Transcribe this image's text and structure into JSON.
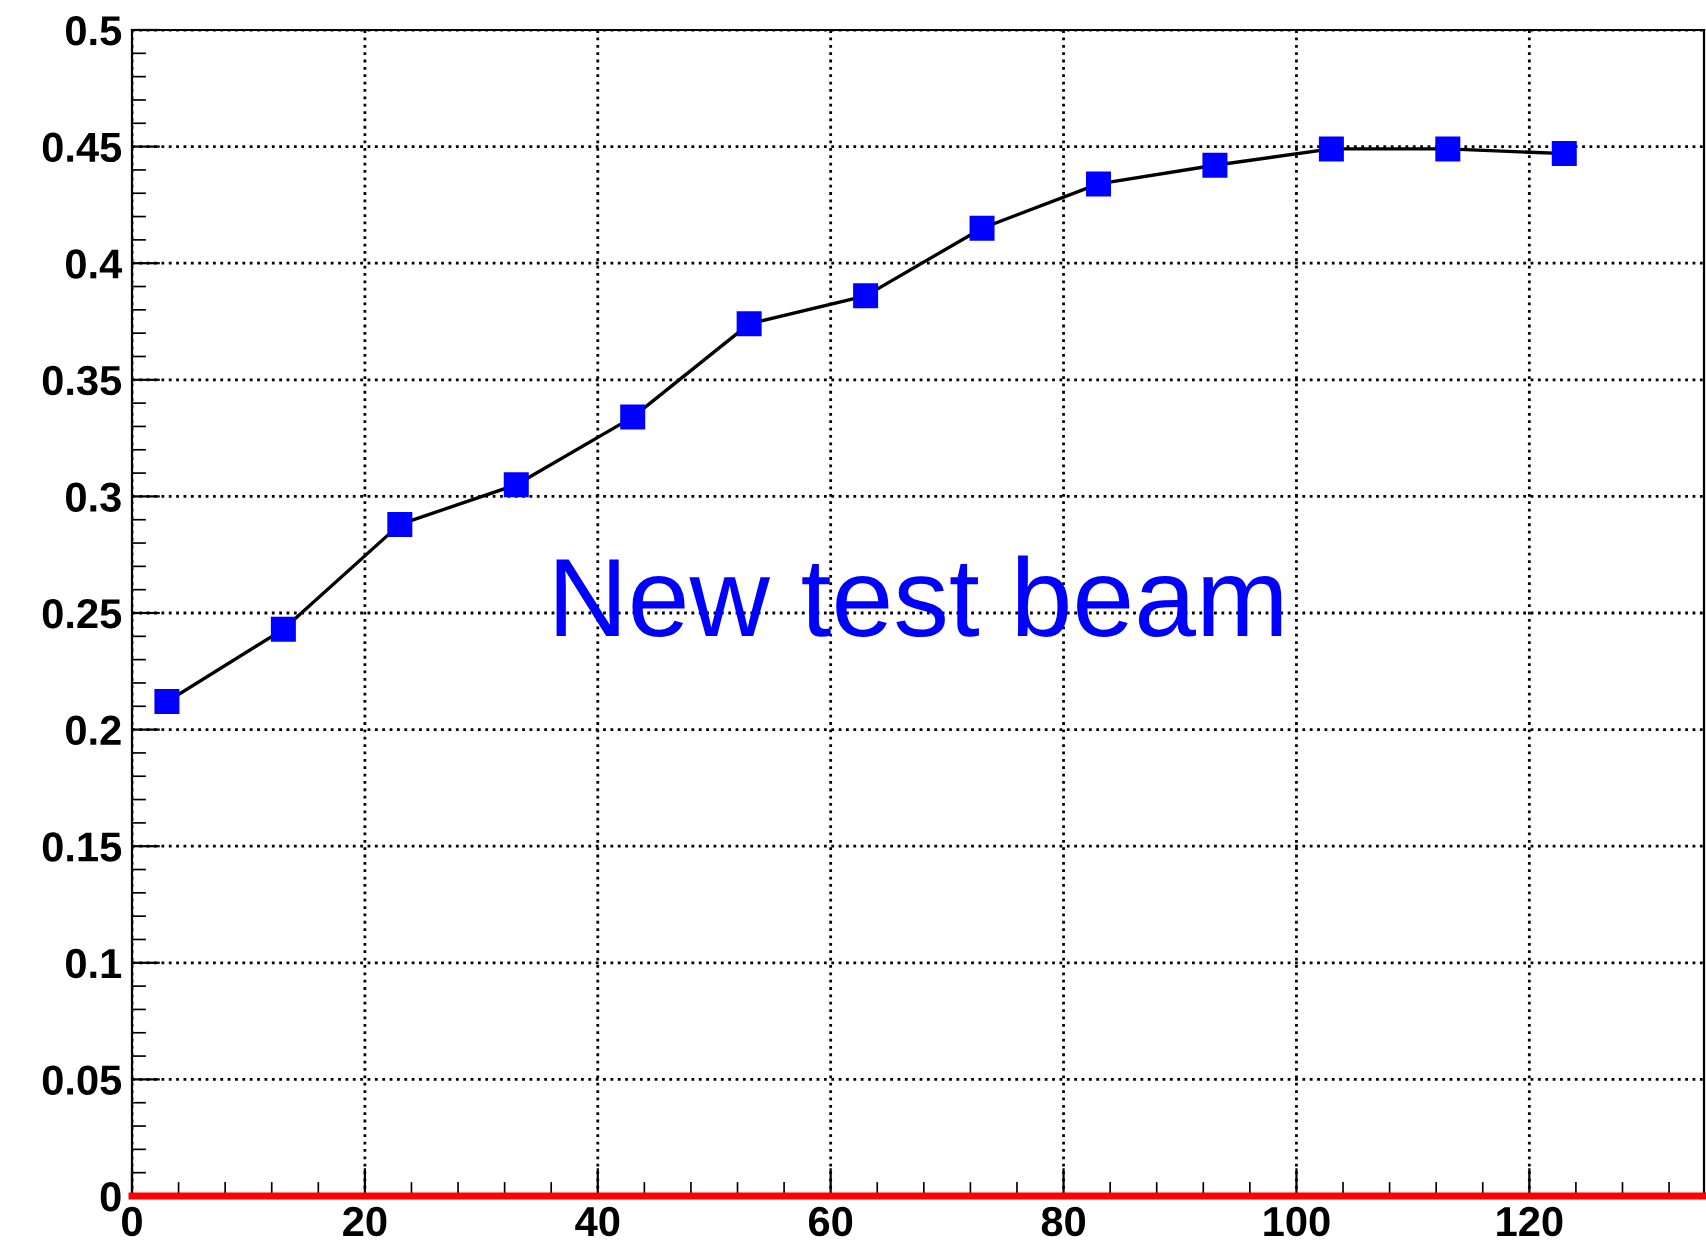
{
  "chart_data": {
    "type": "line",
    "x": [
      3,
      13,
      23,
      33,
      43,
      53,
      63,
      73,
      83,
      93,
      103,
      113,
      123
    ],
    "series": [
      {
        "color": "#0000ff",
        "values": [
          0.212,
          0.243,
          0.288,
          0.305,
          0.334,
          0.374,
          0.386,
          0.415,
          0.434,
          0.442,
          0.449,
          0.449,
          0.447
        ]
      },
      {
        "type": "line",
        "x": [
          0,
          135
        ],
        "values": [
          0,
          0
        ],
        "color": "#ff0000",
        "marker": "none"
      }
    ],
    "xlim": [
      0,
      135
    ],
    "xticks": [
      0,
      20,
      40,
      60,
      80,
      100,
      120
    ],
    "ylim": [
      0,
      0.5
    ],
    "yticks": [
      0,
      0.05,
      0.1,
      0.15,
      0.2,
      0.25,
      0.3,
      0.35,
      0.4,
      0.45,
      0.5
    ],
    "grid": true,
    "marker": "square",
    "line_style": "solid",
    "annotations": [
      "New test beam"
    ]
  }
}
